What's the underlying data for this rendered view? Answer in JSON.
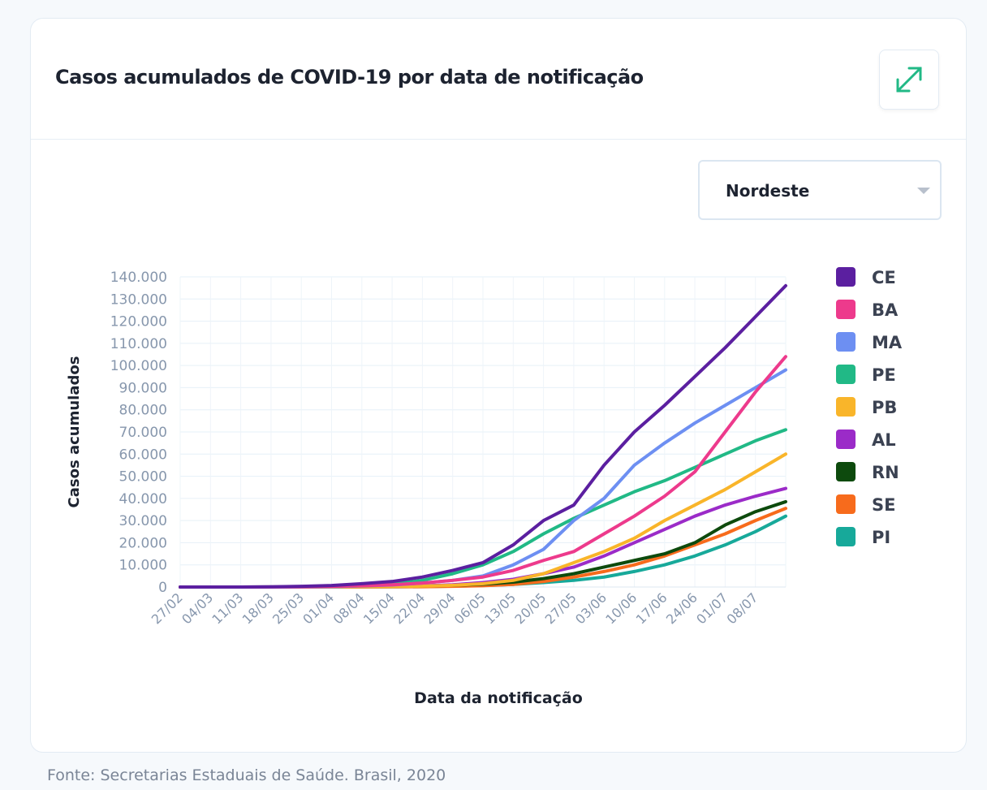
{
  "chart_data": {
    "type": "line",
    "title": "Casos acumulados de COVID-19 por data de notificação",
    "x_label": "Data da notificação",
    "y_label": "Casos acumulados",
    "categories": [
      "27/02",
      "04/03",
      "11/03",
      "18/03",
      "25/03",
      "01/04",
      "08/04",
      "15/04",
      "22/04",
      "29/04",
      "06/05",
      "13/05",
      "20/05",
      "27/05",
      "03/06",
      "10/06",
      "17/06",
      "24/06",
      "01/07",
      "08/07",
      null
    ],
    "ylim": [
      0,
      140000
    ],
    "yticks": [
      0,
      {
        "value": 10000,
        "label": "10.000"
      },
      {
        "value": 20000,
        "label": "20.000"
      },
      {
        "value": 30000,
        "label": "30.000"
      },
      {
        "value": 40000,
        "label": "40.000"
      },
      {
        "value": 50000,
        "label": "50.000"
      },
      {
        "value": 60000,
        "label": "60.000"
      },
      {
        "value": 70000,
        "label": "70.000"
      },
      {
        "value": 80000,
        "label": "80.000"
      },
      {
        "value": 90000,
        "label": "90.000"
      },
      {
        "value": 100000,
        "label": "100.000"
      },
      {
        "value": 110000,
        "label": "110.000"
      },
      {
        "value": 120000,
        "label": "120.000"
      },
      {
        "value": 130000,
        "label": "130.000"
      },
      {
        "value": 140000,
        "label": "140.000"
      }
    ],
    "grid": true,
    "legend": "right",
    "series": [
      {
        "name": "CE",
        "color": "#5b1fa0",
        "values": [
          0,
          0,
          0,
          100,
          300,
          700,
          1500,
          2500,
          4500,
          7500,
          11000,
          19000,
          30000,
          37000,
          55000,
          70000,
          82000,
          95000,
          108000,
          122000,
          136000
        ]
      },
      {
        "name": "BA",
        "color": "#ed3a8c",
        "values": [
          0,
          0,
          0,
          50,
          100,
          300,
          600,
          1000,
          1800,
          3000,
          4500,
          7500,
          12000,
          16000,
          24000,
          32000,
          41000,
          52000,
          70000,
          88000,
          104000
        ]
      },
      {
        "name": "MA",
        "color": "#6d8ff2",
        "values": [
          0,
          0,
          0,
          20,
          80,
          200,
          500,
          900,
          1800,
          3000,
          5000,
          10000,
          17000,
          30000,
          40000,
          55000,
          65000,
          74000,
          82000,
          90000,
          98000
        ]
      },
      {
        "name": "PE",
        "color": "#21b986",
        "values": [
          0,
          0,
          0,
          30,
          80,
          200,
          600,
          1200,
          3000,
          6000,
          10000,
          16000,
          24000,
          31000,
          37000,
          43000,
          48000,
          54000,
          60000,
          66000,
          71000
        ]
      },
      {
        "name": "PB",
        "color": "#f9b52a",
        "values": [
          0,
          0,
          0,
          0,
          20,
          50,
          100,
          200,
          400,
          800,
          1500,
          3000,
          6000,
          11000,
          16000,
          22000,
          30000,
          37000,
          44000,
          52000,
          60000
        ]
      },
      {
        "name": "AL",
        "color": "#9b2bc8",
        "values": [
          0,
          0,
          0,
          0,
          10,
          30,
          80,
          200,
          500,
          1000,
          2000,
          3500,
          6000,
          9000,
          14000,
          20000,
          26000,
          32000,
          37000,
          41000,
          44500
        ]
      },
      {
        "name": "RN",
        "color": "#0d4a0d",
        "values": [
          0,
          0,
          0,
          0,
          20,
          50,
          150,
          300,
          500,
          800,
          1300,
          2200,
          3800,
          6000,
          9000,
          12000,
          15000,
          20000,
          28000,
          34000,
          38500
        ]
      },
      {
        "name": "SE",
        "color": "#f76b1c",
        "values": [
          0,
          0,
          0,
          0,
          10,
          20,
          40,
          80,
          150,
          300,
          600,
          1200,
          2500,
          4500,
          7000,
          10000,
          14000,
          19000,
          24000,
          30000,
          35500
        ]
      },
      {
        "name": "PI",
        "color": "#17a99a",
        "values": [
          0,
          0,
          0,
          0,
          10,
          20,
          40,
          80,
          200,
          400,
          700,
          1200,
          2000,
          3000,
          4500,
          7000,
          10000,
          14000,
          19000,
          25000,
          32000
        ]
      }
    ]
  },
  "filter": {
    "selected": "Nordeste"
  },
  "source": "Fonte: Secretarias Estaduais de Saúde. Brasil, 2020"
}
